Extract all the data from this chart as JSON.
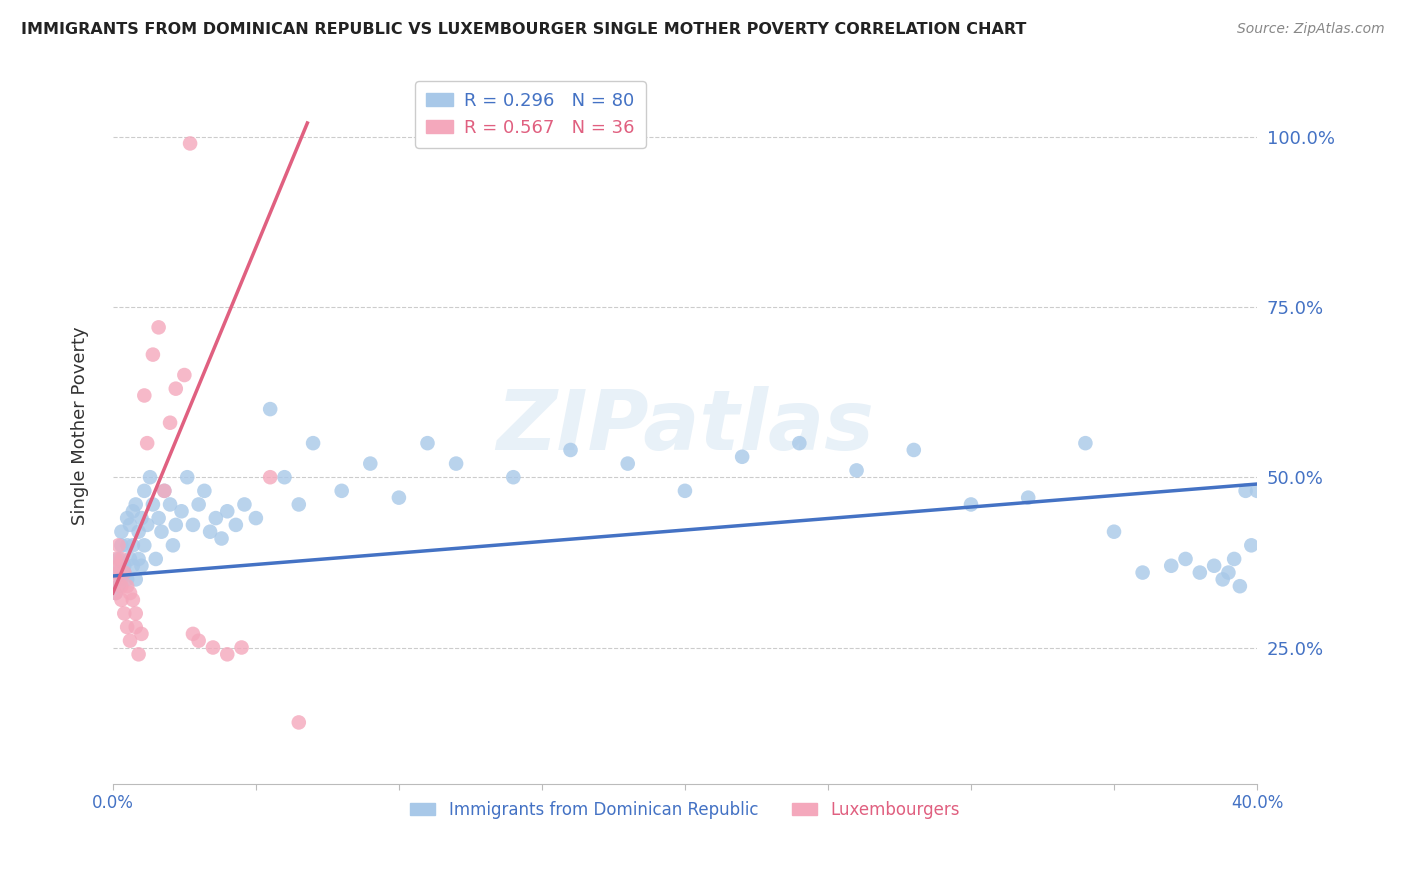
{
  "title": "IMMIGRANTS FROM DOMINICAN REPUBLIC VS LUXEMBOURGER SINGLE MOTHER POVERTY CORRELATION CHART",
  "source": "Source: ZipAtlas.com",
  "ylabel": "Single Mother Poverty",
  "blue_R": 0.296,
  "blue_N": 80,
  "pink_R": 0.567,
  "pink_N": 36,
  "blue_color": "#a8c8e8",
  "pink_color": "#f4a8bc",
  "blue_line_color": "#4472c4",
  "pink_line_color": "#e06080",
  "legend_label_blue": "Immigrants from Dominican Republic",
  "legend_label_pink": "Luxembourgers",
  "watermark": "ZIPatlas",
  "blue_scatter_x": [
    0.001,
    0.001,
    0.002,
    0.002,
    0.003,
    0.003,
    0.003,
    0.004,
    0.004,
    0.005,
    0.005,
    0.005,
    0.006,
    0.006,
    0.007,
    0.007,
    0.007,
    0.008,
    0.008,
    0.009,
    0.009,
    0.01,
    0.01,
    0.011,
    0.011,
    0.012,
    0.013,
    0.014,
    0.015,
    0.016,
    0.017,
    0.018,
    0.02,
    0.021,
    0.022,
    0.024,
    0.026,
    0.028,
    0.03,
    0.032,
    0.034,
    0.036,
    0.038,
    0.04,
    0.043,
    0.046,
    0.05,
    0.055,
    0.06,
    0.065,
    0.07,
    0.08,
    0.09,
    0.1,
    0.11,
    0.12,
    0.14,
    0.16,
    0.18,
    0.2,
    0.22,
    0.24,
    0.26,
    0.28,
    0.3,
    0.32,
    0.34,
    0.35,
    0.36,
    0.37,
    0.375,
    0.38,
    0.385,
    0.388,
    0.39,
    0.392,
    0.394,
    0.396,
    0.398,
    0.4
  ],
  "blue_scatter_y": [
    0.36,
    0.33,
    0.38,
    0.34,
    0.35,
    0.4,
    0.42,
    0.36,
    0.37,
    0.35,
    0.4,
    0.44,
    0.38,
    0.43,
    0.37,
    0.4,
    0.45,
    0.35,
    0.46,
    0.38,
    0.42,
    0.37,
    0.44,
    0.4,
    0.48,
    0.43,
    0.5,
    0.46,
    0.38,
    0.44,
    0.42,
    0.48,
    0.46,
    0.4,
    0.43,
    0.45,
    0.5,
    0.43,
    0.46,
    0.48,
    0.42,
    0.44,
    0.41,
    0.45,
    0.43,
    0.46,
    0.44,
    0.6,
    0.5,
    0.46,
    0.55,
    0.48,
    0.52,
    0.47,
    0.55,
    0.52,
    0.5,
    0.54,
    0.52,
    0.48,
    0.53,
    0.55,
    0.51,
    0.54,
    0.46,
    0.47,
    0.55,
    0.42,
    0.36,
    0.37,
    0.38,
    0.36,
    0.37,
    0.35,
    0.36,
    0.38,
    0.34,
    0.48,
    0.4,
    0.48
  ],
  "pink_scatter_x": [
    0.001,
    0.001,
    0.001,
    0.002,
    0.002,
    0.002,
    0.003,
    0.003,
    0.003,
    0.004,
    0.004,
    0.005,
    0.005,
    0.006,
    0.006,
    0.007,
    0.008,
    0.008,
    0.009,
    0.01,
    0.011,
    0.012,
    0.014,
    0.016,
    0.018,
    0.02,
    0.022,
    0.025,
    0.028,
    0.03,
    0.035,
    0.04,
    0.045,
    0.055,
    0.065,
    0.027
  ],
  "pink_scatter_y": [
    0.38,
    0.35,
    0.33,
    0.4,
    0.37,
    0.36,
    0.34,
    0.32,
    0.38,
    0.36,
    0.3,
    0.34,
    0.28,
    0.33,
    0.26,
    0.32,
    0.3,
    0.28,
    0.24,
    0.27,
    0.62,
    0.55,
    0.68,
    0.72,
    0.48,
    0.58,
    0.63,
    0.65,
    0.27,
    0.26,
    0.25,
    0.24,
    0.25,
    0.5,
    0.14,
    0.99
  ],
  "blue_line_x": [
    0.0,
    0.4
  ],
  "blue_line_y": [
    0.355,
    0.49
  ],
  "pink_line_x": [
    0.0,
    0.068
  ],
  "pink_line_y": [
    0.33,
    1.02
  ],
  "xlim": [
    0.0,
    0.4
  ],
  "ylim": [
    0.05,
    1.1
  ],
  "y_ticks": [
    0.25,
    0.5,
    0.75,
    1.0
  ],
  "y_tick_labels": [
    "25.0%",
    "50.0%",
    "75.0%",
    "100.0%"
  ]
}
